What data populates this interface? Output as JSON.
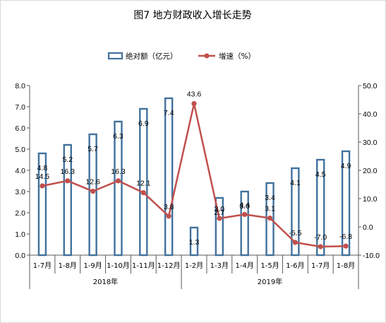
{
  "chart_data": {
    "type": "bar",
    "title": "图7 地方财政收入增长走势",
    "categories": [
      "1-7月",
      "1-8月",
      "1-9月",
      "1-10月",
      "1-11月",
      "1-12月",
      "1-2月",
      "1-3月",
      "1-4月",
      "1-5月",
      "1-6月",
      "1-7月",
      "1-8月"
    ],
    "groups": [
      {
        "label": "2018年",
        "start": 0,
        "end": 5
      },
      {
        "label": "2019年",
        "start": 6,
        "end": 12
      }
    ],
    "series": [
      {
        "name": "绝对额（亿元）",
        "type": "bar",
        "axis": "left",
        "color": "#41719c",
        "values": [
          4.8,
          5.2,
          5.7,
          6.3,
          6.9,
          7.4,
          1.3,
          2.7,
          3.0,
          3.4,
          4.1,
          4.5,
          4.9
        ],
        "labels": [
          "4.8",
          "5.2",
          "5.7",
          "6.3",
          "6.9",
          "7.4",
          "1.3",
          "2.7",
          "3.0",
          "3.4",
          "4.1",
          "4.5",
          "4.9"
        ]
      },
      {
        "name": "增速（%）",
        "type": "line",
        "axis": "right",
        "color": "#c0504d",
        "values": [
          14.5,
          16.3,
          12.6,
          16.3,
          12.1,
          3.8,
          43.6,
          3.0,
          4.4,
          3.1,
          -5.5,
          -7.0,
          -6.8
        ],
        "labels": [
          "14.5",
          "16.3",
          "12.6",
          "16.3",
          "12.1",
          "3.8",
          "43.6",
          "3.0",
          "4.4",
          "3.1",
          "-5.5",
          "-7.0",
          "-6.8"
        ]
      }
    ],
    "y_left": {
      "min": 0,
      "max": 8,
      "ticks": [
        "0.0",
        "1.0",
        "2.0",
        "3.0",
        "4.0",
        "5.0",
        "6.0",
        "7.0",
        "8.0"
      ]
    },
    "y_right": {
      "min": -10,
      "max": 50,
      "ticks": [
        "-10.0",
        "0.0",
        "10.0",
        "20.0",
        "30.0",
        "40.0",
        "50.0"
      ]
    },
    "legend_position": "top-center",
    "grid": false
  }
}
